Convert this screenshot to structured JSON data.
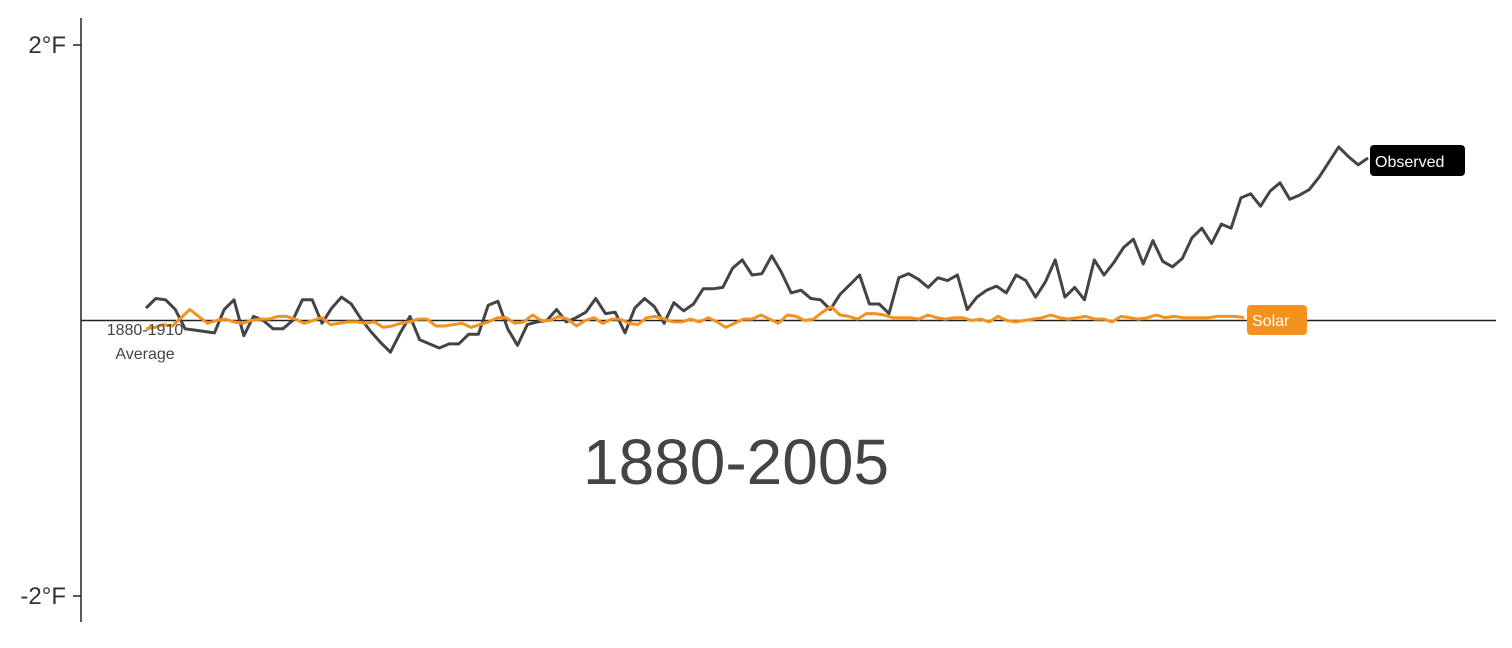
{
  "chart_data": {
    "type": "line",
    "title": "",
    "xlabel": "",
    "ylabel": "",
    "period_label": "1880-2005",
    "baseline_label": [
      "1880-1910",
      "Average"
    ],
    "ylim": [
      -2,
      2
    ],
    "xlim": [
      1880,
      2005
    ],
    "y_ticks": [
      {
        "value": 2,
        "label": "2°F"
      },
      {
        "value": -2,
        "label": "-2°F"
      }
    ],
    "grid": false,
    "legend": "inline end-of-line tags",
    "series": [
      {
        "name": "Observed",
        "color": "#444444",
        "tag_color": "#000000",
        "x_start": 1880,
        "values": [
          0.09,
          0.16,
          0.15,
          0.08,
          -0.06,
          -0.07,
          -0.08,
          -0.09,
          0.08,
          0.15,
          -0.11,
          0.03,
          0.0,
          -0.06,
          -0.06,
          0.0,
          0.15,
          0.15,
          -0.02,
          0.09,
          0.17,
          0.12,
          0.01,
          -0.08,
          -0.16,
          -0.23,
          -0.09,
          0.03,
          -0.14,
          -0.17,
          -0.2,
          -0.17,
          -0.17,
          -0.1,
          -0.1,
          0.11,
          0.14,
          -0.06,
          -0.18,
          -0.03,
          -0.01,
          0.0,
          0.08,
          -0.01,
          0.02,
          0.06,
          0.16,
          0.05,
          0.06,
          -0.09,
          0.09,
          0.16,
          0.1,
          -0.02,
          0.13,
          0.07,
          0.12,
          0.23,
          0.23,
          0.24,
          0.38,
          0.44,
          0.33,
          0.34,
          0.47,
          0.35,
          0.2,
          0.22,
          0.16,
          0.15,
          0.08,
          0.19,
          0.26,
          0.33,
          0.12,
          0.12,
          0.05,
          0.31,
          0.34,
          0.3,
          0.24,
          0.31,
          0.29,
          0.33,
          0.08,
          0.17,
          0.22,
          0.25,
          0.2,
          0.33,
          0.29,
          0.17,
          0.28,
          0.44,
          0.17,
          0.24,
          0.15,
          0.44,
          0.33,
          0.42,
          0.53,
          0.59,
          0.41,
          0.58,
          0.43,
          0.39,
          0.45,
          0.6,
          0.67,
          0.56,
          0.7,
          0.67,
          0.49,
          0.51,
          0.59,
          0.71,
          0.6,
          0.75,
          0.89,
          0.66,
          0.66,
          0.78,
          0.88,
          0.86,
          0.8,
          0.93
        ],
        "x_end_values": [
          0.89,
          0.92,
          0.83,
          0.94,
          1.0,
          0.88,
          0.91,
          0.95,
          1.04,
          1.15,
          1.26,
          1.19,
          1.13,
          1.18
        ]
      },
      {
        "name": "Solar",
        "color": "#F5921E",
        "tag_color": "#F5921E",
        "x_start": 1880,
        "values": [
          -0.06,
          -0.05,
          -0.03,
          -0.04,
          0.02,
          0.08,
          0.03,
          -0.02,
          0.0,
          0.01,
          -0.01,
          -0.02,
          0.0,
          0.01,
          0.01,
          0.03,
          0.03,
          0.01,
          -0.02,
          0.0,
          0.02,
          -0.03,
          -0.02,
          -0.01,
          -0.01,
          -0.02,
          -0.01,
          -0.05,
          -0.04,
          -0.02,
          -0.01,
          0.01,
          0.01,
          -0.04,
          -0.04,
          -0.03,
          -0.02,
          -0.05,
          -0.03,
          -0.01,
          0.02,
          0.02,
          -0.02,
          -0.01,
          0.04,
          0.0,
          0.0,
          0.03,
          0.01,
          -0.04,
          0.0,
          0.02,
          -0.02,
          0.01,
          0.01,
          -0.02,
          -0.03,
          0.02,
          0.03,
          0.01,
          -0.01,
          -0.01,
          0.01,
          -0.01,
          0.02,
          -0.01,
          -0.05,
          -0.02,
          0.01,
          0.01,
          0.04,
          0.01,
          -0.02,
          0.04,
          0.03,
          0.0,
          0.01,
          0.06,
          0.1,
          0.04,
          0.03,
          0.01,
          0.05,
          0.05,
          0.04,
          0.02,
          0.02,
          0.02,
          0.01,
          0.04,
          0.02,
          0.01,
          0.02,
          0.02,
          0.0,
          0.01,
          -0.01,
          0.03,
          0.0,
          -0.01,
          0.0,
          0.01,
          0.02,
          0.04,
          0.02,
          0.01,
          0.02,
          0.03,
          0.01,
          0.01,
          -0.01,
          0.03,
          0.02,
          0.01,
          0.02,
          0.04,
          0.02,
          0.03,
          0.02,
          0.02,
          0.02,
          0.02,
          0.03,
          0.03,
          0.03,
          0.02
        ]
      }
    ]
  }
}
